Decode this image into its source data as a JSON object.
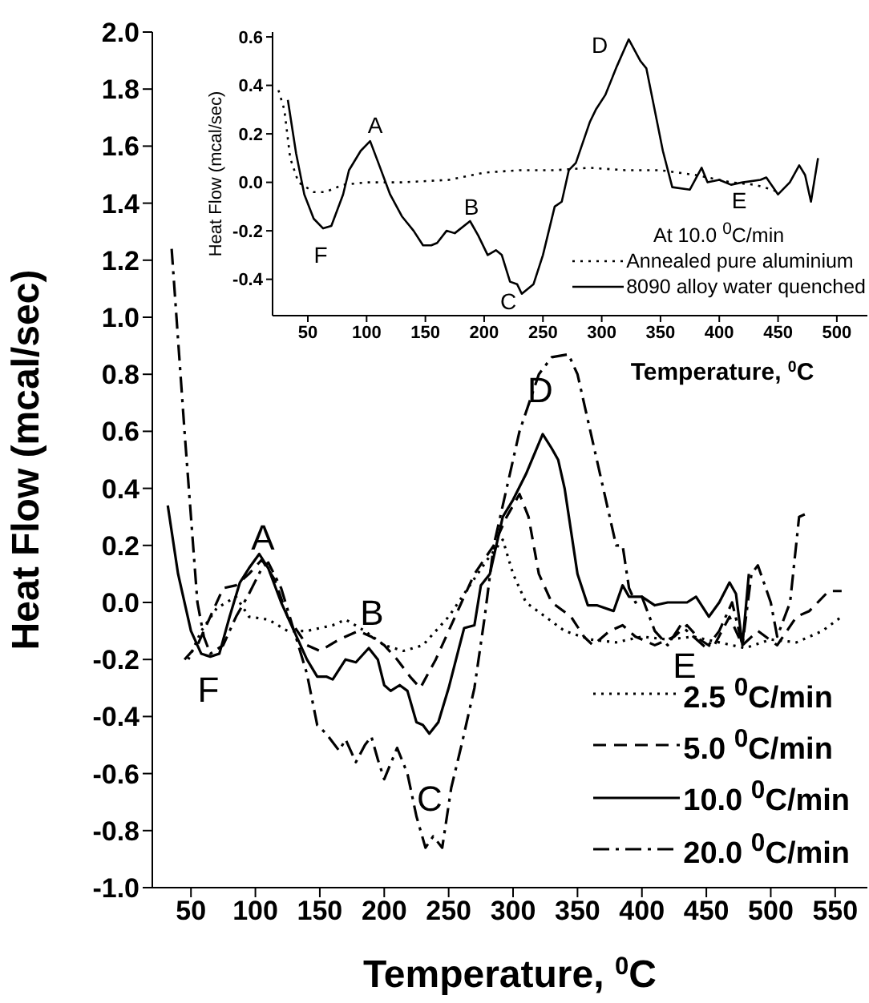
{
  "chart_data": [
    {
      "type": "line",
      "xlabel": "Temperature, $^{0}$C",
      "ylabel": "Heat Flow (mcal/sec)",
      "xlim": [
        20,
        575
      ],
      "xticks": [
        50,
        100,
        150,
        200,
        250,
        300,
        350,
        400,
        450,
        500,
        550
      ],
      "ylim": [
        -1.0,
        2.0
      ],
      "yticks": [
        {
          "value": -1.0,
          "label": "-1.0"
        },
        {
          "value": -0.8,
          "label": "-0.8"
        },
        {
          "value": -0.6,
          "label": "-0.6"
        },
        {
          "value": -0.4,
          "label": "-0.4"
        },
        {
          "value": -0.2,
          "label": "-0.2"
        },
        {
          "value": 0,
          "label": "0.0"
        },
        {
          "value": 0.2,
          "label": "0.2"
        },
        {
          "value": 0.4,
          "label": "0.4"
        },
        {
          "value": 0.6,
          "label": "0.6"
        },
        {
          "value": 0.8,
          "label": "0.8"
        },
        {
          "value": 1.0,
          "label": "1.0"
        },
        {
          "value": 1.2,
          "label": "1.2"
        },
        {
          "value": 1.4,
          "label": "1.4"
        },
        {
          "value": 1.6,
          "label": "1.6"
        },
        {
          "value": 1.8,
          "label": "1.8"
        },
        {
          "value": 2.0,
          "label": "2.0"
        }
      ],
      "grid": false,
      "legend": "bottom right",
      "marker": "none",
      "series": [
        {
          "name": "2.5 $^{0}$C/min",
          "color": "#000000",
          "line_style": "dotted",
          "x": [
            48,
            58,
            70,
            85,
            95,
            110,
            125,
            140,
            160,
            170,
            185,
            200,
            215,
            230,
            250,
            265,
            280,
            292,
            300,
            310,
            325,
            340,
            360,
            380,
            400,
            420,
            440,
            460,
            480,
            500,
            520,
            540,
            555
          ],
          "values": [
            -0.2,
            -0.1,
            -0.02,
            0.02,
            -0.05,
            -0.06,
            -0.1,
            -0.1,
            -0.08,
            -0.06,
            -0.1,
            -0.15,
            -0.17,
            -0.15,
            -0.05,
            0.05,
            0.15,
            0.22,
            0.1,
            0.0,
            -0.05,
            -0.1,
            -0.13,
            -0.14,
            -0.12,
            -0.13,
            -0.12,
            -0.14,
            -0.16,
            -0.13,
            -0.14,
            -0.1,
            -0.05
          ]
        },
        {
          "name": "5.0 $^{0}$C/min",
          "color": "#000000",
          "line_style": "dashed",
          "x": [
            45,
            55,
            65,
            75,
            85,
            95,
            105,
            115,
            125,
            140,
            150,
            165,
            180,
            190,
            200,
            210,
            220,
            228,
            240,
            255,
            270,
            285,
            295,
            305,
            312,
            320,
            330,
            345,
            355,
            362,
            375,
            385,
            395,
            410,
            425,
            435,
            445,
            455,
            468,
            478,
            490,
            505,
            520,
            530,
            545,
            555
          ],
          "values": [
            -0.2,
            -0.15,
            -0.05,
            0.05,
            0.06,
            0.1,
            0.15,
            0.08,
            -0.05,
            -0.15,
            -0.17,
            -0.13,
            -0.1,
            -0.12,
            -0.15,
            -0.2,
            -0.26,
            -0.3,
            -0.2,
            -0.05,
            0.1,
            0.2,
            0.3,
            0.38,
            0.3,
            0.1,
            0.0,
            -0.05,
            -0.12,
            -0.15,
            -0.1,
            -0.08,
            -0.12,
            -0.15,
            -0.12,
            -0.08,
            -0.13,
            -0.16,
            -0.05,
            -0.15,
            -0.1,
            -0.15,
            -0.05,
            -0.03,
            0.04,
            0.04
          ]
        },
        {
          "name": "10.0 $^{0}$C/min",
          "color": "#000000",
          "line_style": "solid",
          "x": [
            32,
            40,
            50,
            58,
            65,
            72,
            80,
            88,
            95,
            103,
            110,
            120,
            130,
            140,
            148,
            155,
            160,
            170,
            178,
            188,
            195,
            200,
            205,
            212,
            218,
            225,
            230,
            235,
            242,
            250,
            258,
            262,
            270,
            275,
            282,
            292,
            300,
            310,
            323,
            330,
            335,
            340,
            350,
            358,
            365,
            378,
            385,
            390,
            400,
            410,
            420,
            435,
            442,
            452,
            460,
            468,
            473,
            478,
            483
          ],
          "values": [
            0.34,
            0.1,
            -0.1,
            -0.18,
            -0.19,
            -0.18,
            -0.05,
            0.07,
            0.12,
            0.17,
            0.12,
            0.0,
            -0.1,
            -0.2,
            -0.26,
            -0.26,
            -0.27,
            -0.2,
            -0.21,
            -0.16,
            -0.2,
            -0.29,
            -0.31,
            -0.29,
            -0.31,
            -0.42,
            -0.43,
            -0.46,
            -0.42,
            -0.3,
            -0.16,
            -0.09,
            -0.08,
            0.06,
            0.1,
            0.3,
            0.36,
            0.45,
            0.59,
            0.54,
            0.5,
            0.4,
            0.1,
            -0.01,
            -0.01,
            -0.03,
            0.06,
            0.02,
            0.02,
            -0.01,
            0.0,
            0.0,
            0.02,
            -0.05,
            0.0,
            0.07,
            0.03,
            -0.15,
            0.1
          ]
        },
        {
          "name": "20.0 $^{0}$C/min",
          "color": "#000000",
          "line_style": "dashdot",
          "x": [
            35,
            45,
            50,
            55,
            60,
            65,
            75,
            85,
            95,
            105,
            110,
            120,
            130,
            140,
            148,
            155,
            165,
            170,
            178,
            185,
            190,
            195,
            200,
            210,
            218,
            225,
            232,
            238,
            245,
            252,
            260,
            270,
            278,
            285,
            295,
            305,
            320,
            330,
            343,
            350,
            360,
            370,
            380,
            385,
            390,
            395,
            400,
            410,
            420,
            430,
            440,
            450,
            460,
            470,
            478,
            485,
            490,
            500,
            505,
            515,
            522,
            527
          ],
          "values": [
            1.24,
            0.6,
            0.3,
            0.0,
            -0.12,
            -0.18,
            -0.15,
            -0.05,
            0.03,
            0.12,
            0.14,
            0.05,
            -0.1,
            -0.25,
            -0.43,
            -0.46,
            -0.52,
            -0.48,
            -0.56,
            -0.5,
            -0.47,
            -0.55,
            -0.62,
            -0.51,
            -0.6,
            -0.75,
            -0.86,
            -0.82,
            -0.86,
            -0.65,
            -0.5,
            -0.3,
            -0.05,
            0.2,
            0.4,
            0.6,
            0.8,
            0.86,
            0.87,
            0.8,
            0.6,
            0.4,
            0.2,
            0.2,
            0.05,
            0.0,
            0.02,
            -0.1,
            -0.15,
            -0.08,
            -0.12,
            -0.16,
            -0.1,
            0.0,
            -0.15,
            0.1,
            0.13,
            0.0,
            -0.12,
            0.0,
            0.3,
            0.31
          ]
        }
      ],
      "annotations": [
        "A",
        "B",
        "C",
        "D",
        "E",
        "F"
      ]
    },
    {
      "type": "line",
      "xlabel": "Temperature, $^{0}$C",
      "ylabel": "Heat Flow (mcal/sec)",
      "legend_title": "At 10.0 $^{0}$C/min",
      "xlim": [
        20,
        526
      ],
      "xticks": [
        50,
        100,
        150,
        200,
        250,
        300,
        350,
        400,
        450,
        500
      ],
      "ylim": [
        -0.55,
        0.62
      ],
      "yticks": [
        {
          "value": -0.4,
          "label": "-0.4"
        },
        {
          "value": -0.2,
          "label": "-0.2"
        },
        {
          "value": 0,
          "label": "0.0"
        },
        {
          "value": 0.2,
          "label": "0.2"
        },
        {
          "value": 0.4,
          "label": "0.4"
        },
        {
          "value": 0.6,
          "label": "0.6"
        }
      ],
      "grid": false,
      "legend": "bottom right",
      "marker": "none",
      "series": [
        {
          "name": "Annealed pure aluminium",
          "color": "#000000",
          "line_style": "dotted",
          "x": [
            25,
            30,
            35,
            42,
            55,
            65,
            80,
            100,
            130,
            170,
            200,
            230,
            260,
            290,
            320,
            350,
            380,
            410,
            430,
            445,
            450
          ],
          "values": [
            0.38,
            0.3,
            0.1,
            0.0,
            -0.04,
            -0.04,
            -0.01,
            0.0,
            0.0,
            0.01,
            0.04,
            0.05,
            0.05,
            0.06,
            0.05,
            0.05,
            0.03,
            0.0,
            -0.01,
            -0.03,
            -0.04
          ]
        },
        {
          "name": "8090 alloy water quenched",
          "color": "#000000",
          "line_style": "solid",
          "x": [
            33,
            40,
            47,
            55,
            63,
            70,
            80,
            85,
            95,
            103,
            110,
            120,
            130,
            140,
            148,
            155,
            160,
            168,
            175,
            188,
            195,
            203,
            210,
            215,
            222,
            228,
            232,
            242,
            250,
            260,
            266,
            272,
            278,
            290,
            295,
            303,
            313,
            323,
            333,
            338,
            345,
            352,
            360,
            375,
            385,
            390,
            400,
            410,
            420,
            435,
            440,
            450,
            460,
            468,
            473,
            478,
            484
          ],
          "values": [
            0.34,
            0.12,
            -0.05,
            -0.15,
            -0.19,
            -0.18,
            -0.05,
            0.05,
            0.13,
            0.17,
            0.08,
            -0.05,
            -0.14,
            -0.2,
            -0.26,
            -0.26,
            -0.25,
            -0.2,
            -0.21,
            -0.16,
            -0.22,
            -0.3,
            -0.28,
            -0.3,
            -0.41,
            -0.42,
            -0.46,
            -0.42,
            -0.3,
            -0.1,
            -0.08,
            0.05,
            0.08,
            0.25,
            0.3,
            0.36,
            0.48,
            0.59,
            0.5,
            0.47,
            0.3,
            0.13,
            -0.02,
            -0.03,
            0.06,
            0.0,
            0.01,
            -0.01,
            0.0,
            0.01,
            0.02,
            -0.05,
            0.0,
            0.07,
            0.03,
            -0.08,
            0.1
          ]
        }
      ],
      "annotations": [
        "A",
        "B",
        "C",
        "D",
        "E",
        "F"
      ]
    }
  ]
}
